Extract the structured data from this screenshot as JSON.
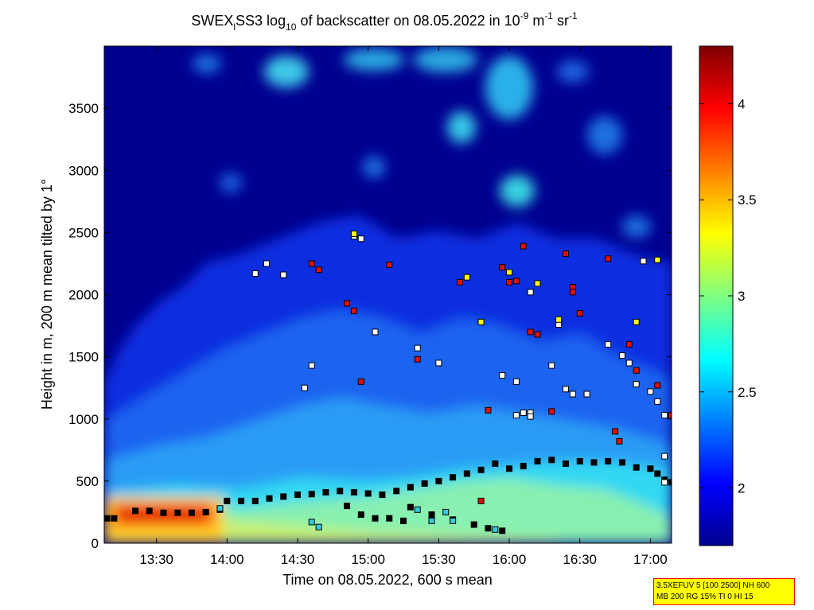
{
  "chart_data": {
    "type": "heatmap",
    "title": {
      "p1": "SWEX",
      "p1_sub": "l",
      "p2": "SS3 log",
      "p2_sub": "10",
      "p3": " of backscatter on 08.05.2022 in 10",
      "p3_sup": "-9",
      "p4": " m",
      "p4_sup": "-1",
      "p5": " sr",
      "p5_sup": "-1"
    },
    "xlabel": "Time on 08.05.2022, 600 s mean",
    "ylabel": "Height in m, 200 m mean tilted by 1°",
    "x_ticks": [
      "13:30",
      "14:00",
      "14:30",
      "15:00",
      "15:30",
      "16:00",
      "16:30",
      "17:00"
    ],
    "x_tick_hours": [
      13.5,
      14.0,
      14.5,
      15.0,
      15.5,
      16.0,
      16.5,
      17.0
    ],
    "xlim_hours": [
      13.13,
      17.15
    ],
    "y_ticks": [
      0,
      500,
      1000,
      1500,
      2000,
      2500,
      3000,
      3500
    ],
    "ylim": [
      0,
      4000
    ],
    "colorbar": {
      "ticks": [
        "2",
        "2.5",
        "3",
        "3.5",
        "4"
      ],
      "tick_values": [
        2,
        2.5,
        3,
        3.5,
        4
      ],
      "range": [
        1.7,
        4.3
      ],
      "colormap": "jet"
    },
    "series": [
      {
        "marker": "black-square",
        "points": [
          [
            13.15,
            200
          ],
          [
            13.2,
            200
          ],
          [
            13.35,
            260
          ],
          [
            13.45,
            260
          ],
          [
            13.55,
            245
          ],
          [
            13.65,
            245
          ],
          [
            13.75,
            245
          ],
          [
            13.85,
            250
          ],
          [
            13.95,
            270
          ],
          [
            14.0,
            340
          ],
          [
            14.1,
            340
          ],
          [
            14.2,
            340
          ],
          [
            14.3,
            360
          ],
          [
            14.4,
            375
          ],
          [
            14.5,
            390
          ],
          [
            14.6,
            395
          ],
          [
            14.7,
            410
          ],
          [
            14.8,
            420
          ],
          [
            14.9,
            410
          ],
          [
            15.0,
            400
          ],
          [
            15.1,
            390
          ],
          [
            15.2,
            420
          ],
          [
            15.3,
            450
          ],
          [
            15.4,
            480
          ],
          [
            15.5,
            500
          ],
          [
            15.6,
            530
          ],
          [
            15.7,
            560
          ],
          [
            15.8,
            590
          ],
          [
            15.9,
            640
          ],
          [
            16.0,
            600
          ],
          [
            16.1,
            620
          ],
          [
            16.2,
            660
          ],
          [
            16.3,
            670
          ],
          [
            16.4,
            640
          ],
          [
            16.5,
            660
          ],
          [
            16.6,
            650
          ],
          [
            16.7,
            660
          ],
          [
            16.8,
            650
          ],
          [
            16.9,
            610
          ],
          [
            17.0,
            600
          ],
          [
            17.05,
            560
          ],
          [
            17.1,
            510
          ],
          [
            17.15,
            490
          ]
        ]
      },
      {
        "marker": "black-square",
        "points": [
          [
            14.85,
            300
          ],
          [
            14.95,
            230
          ],
          [
            15.05,
            200
          ],
          [
            15.15,
            200
          ],
          [
            15.25,
            180
          ]
        ]
      },
      {
        "marker": "black-square",
        "points": [
          [
            15.3,
            290
          ],
          [
            15.45,
            230
          ],
          [
            15.6,
            190
          ],
          [
            15.75,
            150
          ],
          [
            15.85,
            120
          ],
          [
            15.95,
            100
          ]
        ]
      },
      {
        "marker": "white-square",
        "points": [
          [
            14.2,
            2170
          ],
          [
            14.28,
            2250
          ],
          [
            14.4,
            2160
          ],
          [
            14.55,
            1250
          ],
          [
            14.6,
            1430
          ],
          [
            14.9,
            2470
          ],
          [
            14.95,
            2450
          ],
          [
            15.05,
            1700
          ],
          [
            15.35,
            1570
          ],
          [
            15.5,
            1450
          ],
          [
            15.95,
            1350
          ],
          [
            16.05,
            1300
          ],
          [
            16.05,
            1030
          ],
          [
            16.1,
            1050
          ],
          [
            16.15,
            2020
          ],
          [
            16.3,
            1430
          ],
          [
            16.4,
            1240
          ],
          [
            16.45,
            1200
          ],
          [
            16.55,
            1200
          ],
          [
            16.7,
            1600
          ],
          [
            16.8,
            1510
          ],
          [
            16.85,
            1450
          ],
          [
            16.9,
            1280
          ],
          [
            17.0,
            1220
          ],
          [
            17.05,
            1140
          ],
          [
            17.1,
            1030
          ],
          [
            17.1,
            700
          ],
          [
            17.1,
            490
          ],
          [
            16.95,
            2270
          ],
          [
            16.15,
            1050
          ],
          [
            16.35,
            1760
          ],
          [
            16.15,
            1020
          ]
        ]
      },
      {
        "marker": "red-square",
        "points": [
          [
            14.6,
            2250
          ],
          [
            14.65,
            2200
          ],
          [
            14.85,
            1930
          ],
          [
            14.9,
            1870
          ],
          [
            14.95,
            1300
          ],
          [
            15.15,
            2240
          ],
          [
            15.65,
            2100
          ],
          [
            15.85,
            1070
          ],
          [
            16.0,
            2100
          ],
          [
            16.1,
            2390
          ],
          [
            16.15,
            1700
          ],
          [
            16.2,
            1680
          ],
          [
            16.3,
            1060
          ],
          [
            16.4,
            2330
          ],
          [
            16.45,
            2060
          ],
          [
            16.5,
            1850
          ],
          [
            16.7,
            2290
          ],
          [
            16.75,
            900
          ],
          [
            16.78,
            820
          ],
          [
            16.85,
            1600
          ],
          [
            16.9,
            1390
          ],
          [
            17.05,
            1270
          ],
          [
            17.15,
            1030
          ],
          [
            15.35,
            1480
          ],
          [
            15.95,
            2220
          ],
          [
            16.05,
            2110
          ],
          [
            16.45,
            2020
          ],
          [
            15.8,
            340
          ]
        ]
      },
      {
        "marker": "yellow-square",
        "points": [
          [
            14.9,
            2490
          ],
          [
            15.8,
            1780
          ],
          [
            16.2,
            2090
          ],
          [
            16.35,
            1800
          ],
          [
            16.9,
            1780
          ],
          [
            17.05,
            2280
          ],
          [
            15.7,
            2140
          ],
          [
            16.0,
            2180
          ]
        ]
      },
      {
        "marker": "cyan-square",
        "points": [
          [
            13.95,
            280
          ],
          [
            14.6,
            170
          ],
          [
            14.65,
            130
          ],
          [
            15.35,
            270
          ],
          [
            15.45,
            180
          ],
          [
            15.55,
            250
          ],
          [
            15.6,
            180
          ],
          [
            15.9,
            110
          ]
        ]
      }
    ]
  },
  "info_box": {
    "line1": "3.5XEFUV 5 [100 2500] NH 600",
    "line2": "MB 200 RG 15% TI 0 HI 15"
  }
}
